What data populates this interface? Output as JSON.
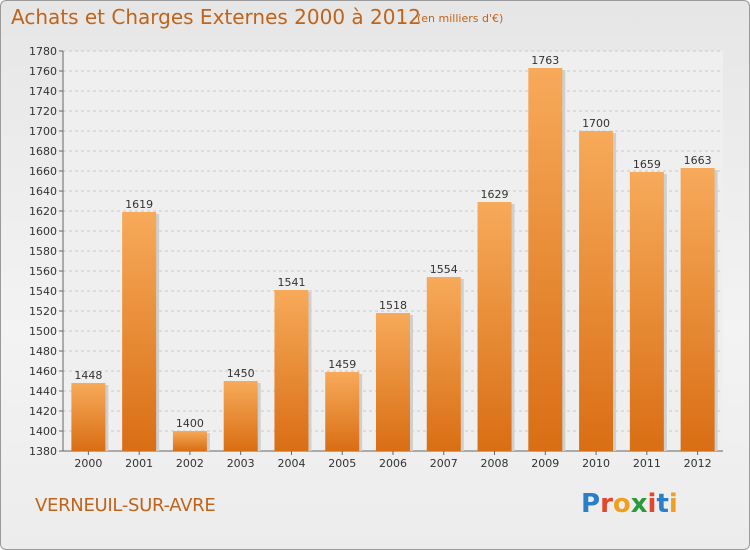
{
  "title": "Achats et Charges Externes 2000 à 2012",
  "subtitle": "(en milliers d'€)",
  "location": "VERNEUIL-SUR-AVRE",
  "logo": {
    "letters": [
      "P",
      "r",
      "o",
      "x",
      "i",
      "t",
      "i"
    ],
    "colors": [
      "#2a7fc9",
      "#e3462b",
      "#f0a020",
      "#2a9a3a",
      "#e3462b",
      "#2a7fc9",
      "#f0a020"
    ]
  },
  "colors": {
    "bar": "#f08a2a",
    "bar_light": "#f7aa5a",
    "bar_dark": "#d96e14",
    "text": "#c0641b"
  },
  "chart_data": {
    "type": "bar",
    "categories": [
      "2000",
      "2001",
      "2002",
      "2003",
      "2004",
      "2005",
      "2006",
      "2007",
      "2008",
      "2009",
      "2010",
      "2011",
      "2012"
    ],
    "values": [
      1448,
      1619,
      1400,
      1450,
      1541,
      1459,
      1518,
      1554,
      1629,
      1763,
      1700,
      1659,
      1663
    ],
    "ylim": [
      1380,
      1780
    ],
    "ytick_step": 20,
    "grid": true
  }
}
